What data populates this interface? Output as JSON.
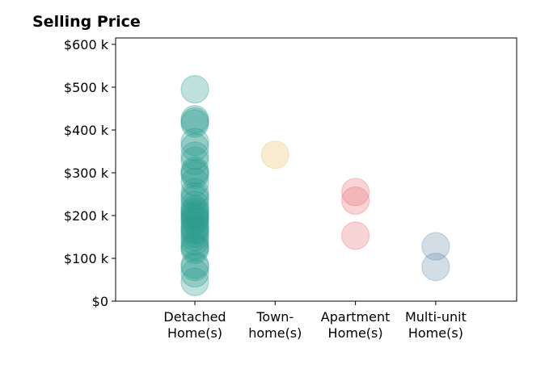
{
  "chart_data": {
    "type": "scatter",
    "title": "Selling Price",
    "xlabel": "",
    "ylabel": "",
    "categories": [
      [
        "Detached",
        "Home(s)"
      ],
      [
        "Town-",
        "home(s)"
      ],
      [
        "Apartment",
        "Home(s)"
      ],
      [
        "Multi-unit",
        "Home(s)"
      ]
    ],
    "y_ticks": [
      {
        "value": 0,
        "label": "$0"
      },
      {
        "value": 100,
        "label": "$100 k"
      },
      {
        "value": 200,
        "label": "$200 k"
      },
      {
        "value": 300,
        "label": "$300 k"
      },
      {
        "value": 400,
        "label": "$400 k"
      },
      {
        "value": 500,
        "label": "$500 k"
      },
      {
        "value": 600,
        "label": "$600 k"
      }
    ],
    "ylim": [
      0,
      615
    ],
    "y_unit": "thousands of dollars",
    "grid": false,
    "series": [
      {
        "category": 0,
        "color": "#2a9d8f",
        "values": [
          495,
          425,
          420,
          415,
          372,
          360,
          340,
          328,
          305,
          300,
          295,
          278,
          255,
          245,
          238,
          225,
          215,
          210,
          205,
          200,
          195,
          190,
          185,
          175,
          170,
          165,
          158,
          150,
          140,
          130,
          125,
          120,
          85,
          80,
          65,
          45
        ]
      },
      {
        "category": 1,
        "color": "#e9c46a",
        "values": [
          342
        ]
      },
      {
        "category": 2,
        "color": "#e76f7a",
        "values": [
          255,
          235,
          153
        ]
      },
      {
        "category": 3,
        "color": "#6b8fad",
        "values": [
          128,
          80
        ]
      }
    ]
  }
}
